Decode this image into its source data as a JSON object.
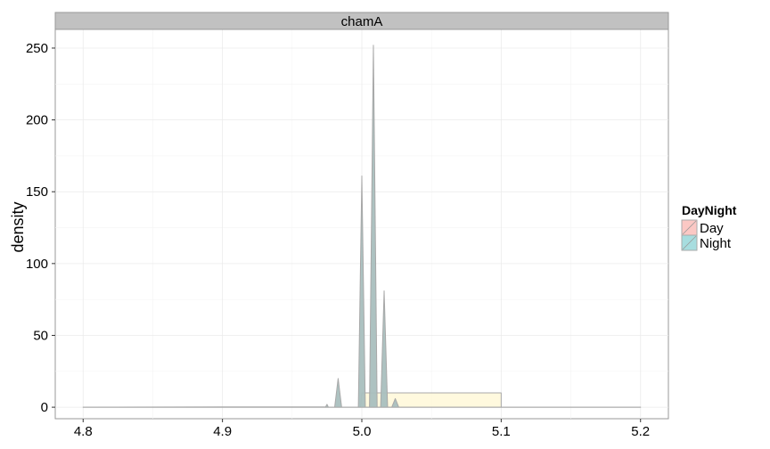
{
  "chart_data": {
    "type": "area",
    "facet": "chamA",
    "xlabel": "",
    "ylabel": "density",
    "xlim": [
      4.78,
      5.22
    ],
    "ylim": [
      -8,
      263
    ],
    "x_ticks": [
      "4.8",
      "4.9",
      "5.0",
      "5.1",
      "5.2"
    ],
    "y_ticks": [
      "0",
      "50",
      "100",
      "150",
      "200",
      "250"
    ],
    "grid": true,
    "legend_position": "right",
    "legend": {
      "title": "DayNight",
      "items": [
        {
          "name": "Day",
          "color": "#f8766d"
        },
        {
          "name": "Night",
          "color": "#00bfc4"
        }
      ]
    },
    "series": [
      {
        "name": "Day",
        "color": "#f8766d",
        "values": [
          [
            4.8,
            0
          ],
          [
            4.9,
            0
          ],
          [
            4.999,
            0
          ],
          [
            5.0,
            10
          ],
          [
            5.1,
            10
          ],
          [
            5.1,
            0
          ],
          [
            5.2,
            0
          ]
        ]
      },
      {
        "name": "Night",
        "color": "#00bfc4",
        "values": [
          [
            4.8,
            0
          ],
          [
            4.9,
            0.2
          ],
          [
            4.974,
            0.2
          ],
          [
            4.975,
            2
          ],
          [
            4.976,
            0
          ],
          [
            4.9805,
            0
          ],
          [
            4.983,
            20
          ],
          [
            4.9855,
            0
          ],
          [
            4.9975,
            0
          ],
          [
            5.0,
            161
          ],
          [
            5.0025,
            0
          ],
          [
            5.0055,
            0
          ],
          [
            5.0083,
            252
          ],
          [
            5.011,
            0
          ],
          [
            5.0135,
            0
          ],
          [
            5.016,
            81
          ],
          [
            5.0185,
            0
          ],
          [
            5.0215,
            0
          ],
          [
            5.024,
            6
          ],
          [
            5.0265,
            0
          ],
          [
            5.1,
            0
          ],
          [
            5.2,
            0
          ]
        ]
      }
    ]
  }
}
